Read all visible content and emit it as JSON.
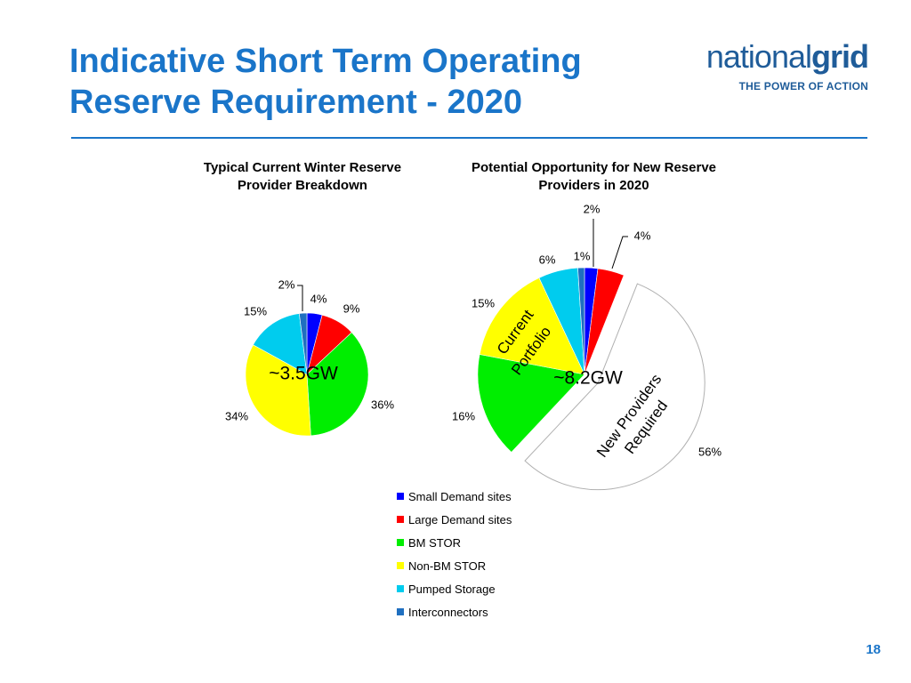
{
  "slide": {
    "title_line1": "Indicative Short Term Operating",
    "title_line2": "Reserve Requirement - 2020",
    "logo_light": "national",
    "logo_bold": "grid",
    "logo_tagline": "THE POWER OF ACTION",
    "page_number": "18"
  },
  "colors": {
    "accent": "#1a75c9",
    "small_demand": "#0000ff",
    "large_demand": "#ff0000",
    "bm_stor": "#00ee00",
    "non_bm_stor": "#ffff00",
    "pumped_storage": "#00ccee",
    "interconnectors": "#1f6fc0",
    "new_providers": "#ffffff"
  },
  "chart_data": [
    {
      "type": "pie",
      "title": "Typical Current Winter Reserve Provider Breakdown",
      "center_label": "~3.5GW",
      "slices": [
        {
          "name": "Small Demand sites",
          "value": 4,
          "label": "4%"
        },
        {
          "name": "Large Demand sites",
          "value": 9,
          "label": "9%"
        },
        {
          "name": "BM STOR",
          "value": 36,
          "label": "36%"
        },
        {
          "name": "Non-BM STOR",
          "value": 34,
          "label": "34%"
        },
        {
          "name": "Pumped Storage",
          "value": 15,
          "label": "15%"
        },
        {
          "name": "Interconnectors",
          "value": 2,
          "label": "2%"
        }
      ]
    },
    {
      "type": "pie",
      "title": "Potential Opportunity for New Reserve Providers in 2020",
      "center_label": "~8.2GW",
      "group_label_line1": "Current",
      "group_label_line2": "Portfolio",
      "exploded_label_line1": "New Providers",
      "exploded_label_line2": "Required",
      "slices": [
        {
          "name": "Small Demand sites",
          "value": 2,
          "label": "2%"
        },
        {
          "name": "Large Demand sites",
          "value": 4,
          "label": "4%"
        },
        {
          "name": "New Providers Required",
          "value": 56,
          "label": "56%"
        },
        {
          "name": "BM STOR",
          "value": 16,
          "label": "16%"
        },
        {
          "name": "Non-BM STOR",
          "value": 15,
          "label": "15%"
        },
        {
          "name": "Pumped Storage",
          "value": 6,
          "label": "6%"
        },
        {
          "name": "Interconnectors",
          "value": 1,
          "label": "1%"
        }
      ]
    }
  ],
  "legend": [
    {
      "name": "Small Demand sites",
      "color": "#0000ff"
    },
    {
      "name": "Large Demand sites",
      "color": "#ff0000"
    },
    {
      "name": "BM STOR",
      "color": "#00ee00"
    },
    {
      "name": "Non-BM STOR",
      "color": "#ffff00"
    },
    {
      "name": "Pumped Storage",
      "color": "#00ccee"
    },
    {
      "name": "Interconnectors",
      "color": "#1f6fc0"
    }
  ]
}
